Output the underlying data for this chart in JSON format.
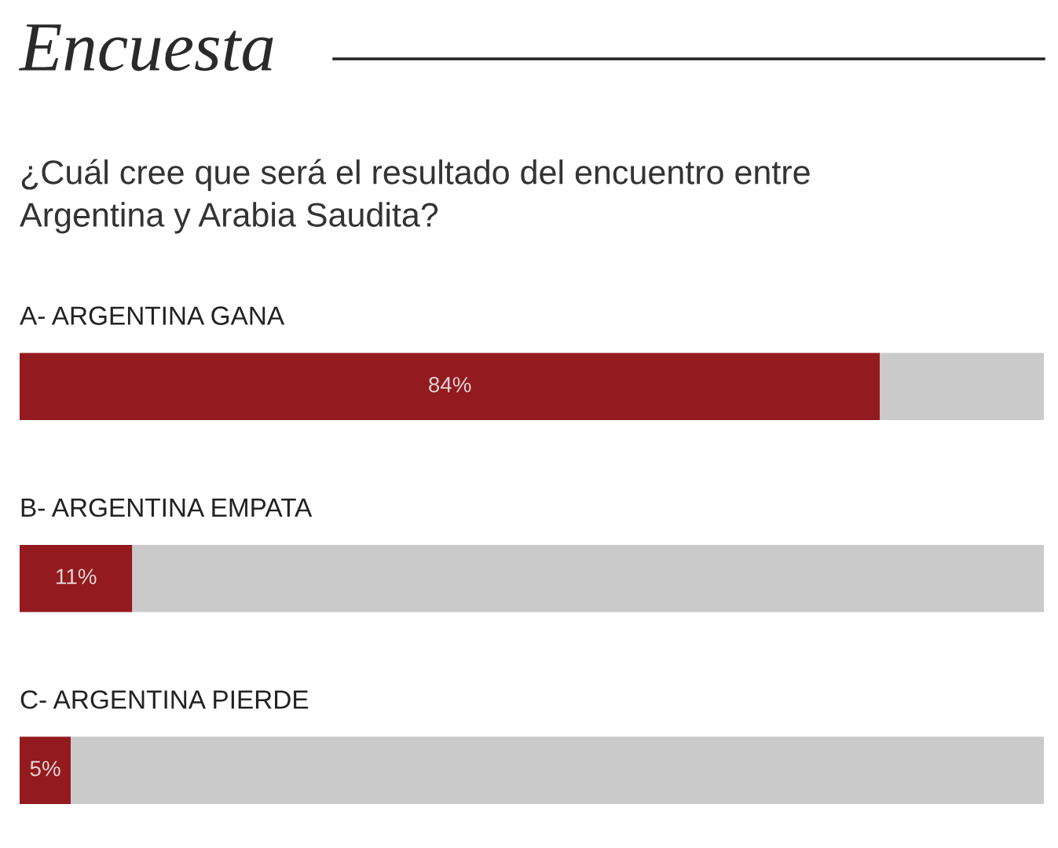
{
  "chart_data": {
    "type": "bar",
    "orientation": "horizontal",
    "stacked": true,
    "title": "Encuesta",
    "subtitle": "¿Cuál cree que será el resultado del encuentro entre\nArgentina y Arabia Saudita?",
    "categories": [
      "A- ARGENTINA GANA",
      "B- ARGENTINA EMPATA",
      "C- ARGENTINA PIERDE"
    ],
    "series": [
      {
        "color": "#931a1e",
        "values": [
          84,
          11,
          5
        ],
        "value_labels": [
          "84%",
          "11%",
          "5%"
        ]
      },
      {
        "color": "#cacaca",
        "values": [
          16,
          89,
          95
        ]
      }
    ],
    "xlim": [
      0,
      100
    ],
    "tick_labels": false
  }
}
